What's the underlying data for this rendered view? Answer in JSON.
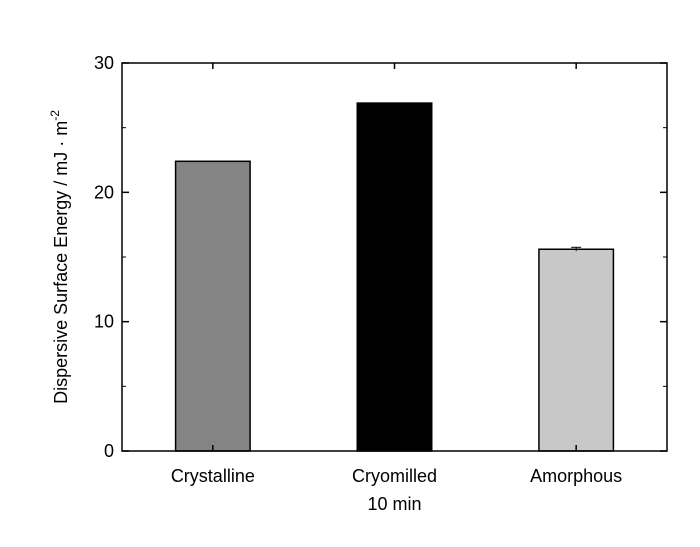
{
  "chart_data": {
    "type": "bar",
    "title": "",
    "xlabel": "",
    "ylabel": {
      "main": "Dispersive Surface Energy / mJ · m",
      "superscript": "-2"
    },
    "ylim": [
      0,
      30
    ],
    "yticks": [
      0,
      10,
      20,
      30
    ],
    "grid": false,
    "categories": [
      [
        "Crystalline"
      ],
      [
        "Cryomilled",
        "10 min"
      ],
      [
        "Amorphous"
      ]
    ],
    "values": [
      22.4,
      26.9,
      15.6
    ],
    "errors": [
      0,
      0,
      0.15
    ],
    "colors": [
      "#848484",
      "#000000",
      "#c8c8c8"
    ]
  }
}
